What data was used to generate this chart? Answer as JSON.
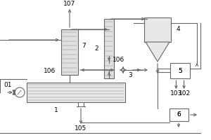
{
  "bg_color": "#ffffff",
  "line_color": "#666666",
  "lw": 0.8,
  "fig_width": 3.0,
  "fig_height": 2.0,
  "dpi": 100
}
